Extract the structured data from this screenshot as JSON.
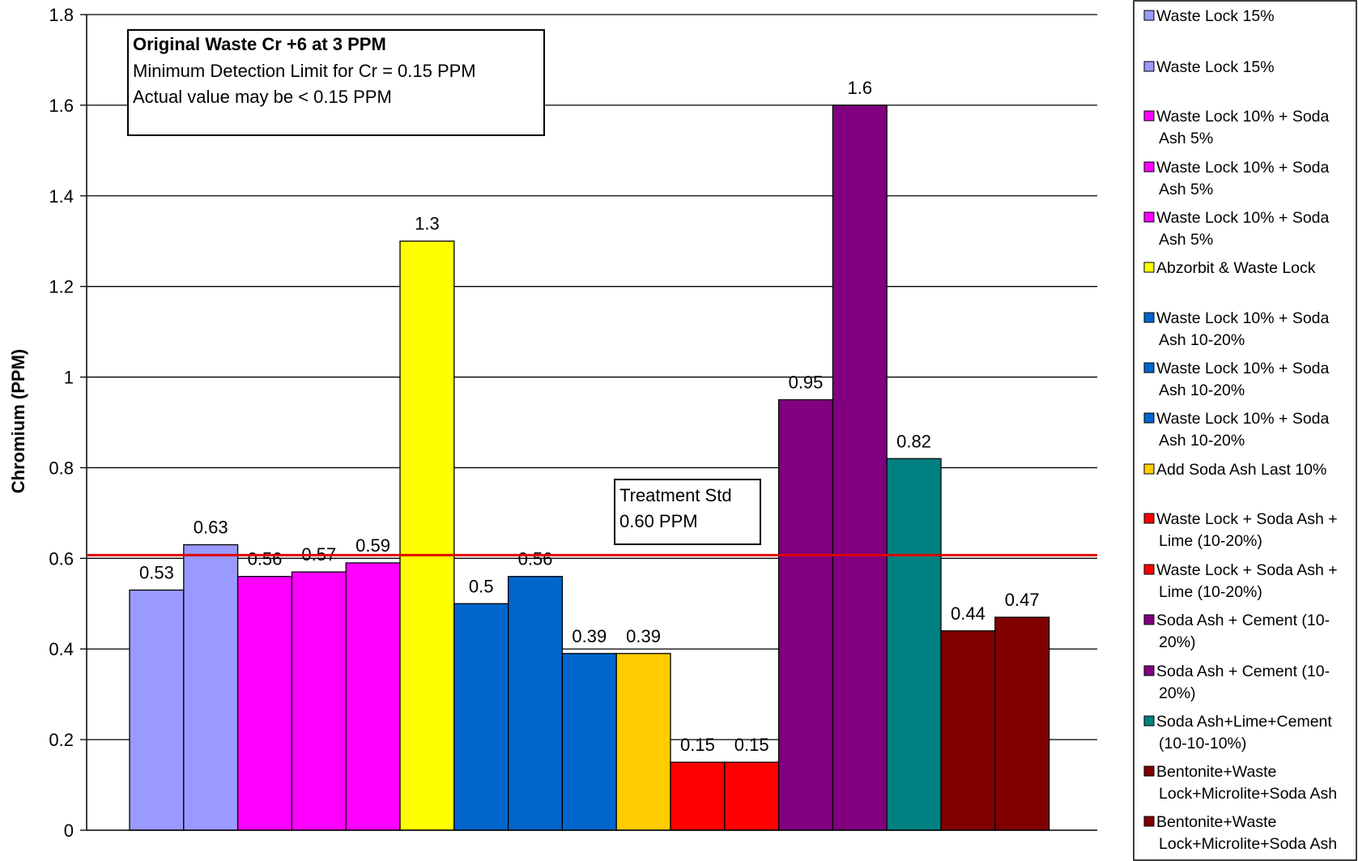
{
  "chart_data": {
    "type": "bar",
    "title": "",
    "xlabel": "",
    "ylabel": "Chromium (PPM)",
    "ylim": [
      0,
      1.8
    ],
    "yticks": [
      "0",
      "0.2",
      "0.4",
      "0.6",
      "0.8",
      "1",
      "1.2",
      "1.4",
      "1.6",
      "1.8"
    ],
    "grid": true,
    "legend_position": "right",
    "series": [
      {
        "name": "Waste Lock 15%",
        "value": 0.53,
        "label": "0.53",
        "color": "#9999FF"
      },
      {
        "name": "Waste Lock 15%",
        "value": 0.63,
        "label": "0.63",
        "color": "#9999FF"
      },
      {
        "name": "Waste Lock 10% + Soda Ash 5%",
        "value": 0.56,
        "label": "0.56",
        "color": "#FF00FF"
      },
      {
        "name": "Waste Lock 10% + Soda Ash 5%",
        "value": 0.57,
        "label": "0.57",
        "color": "#FF00FF"
      },
      {
        "name": "Waste Lock 10% + Soda Ash 5%",
        "value": 0.59,
        "label": "0.59",
        "color": "#FF00FF"
      },
      {
        "name": "Abzorbit & Waste Lock",
        "value": 1.3,
        "label": "1.3",
        "color": "#FFFF00"
      },
      {
        "name": "Waste Lock 10% + Soda Ash 10-20%",
        "value": 0.5,
        "label": "0.5",
        "color": "#0066CC"
      },
      {
        "name": "Waste Lock 10% + Soda Ash 10-20%",
        "value": 0.56,
        "label": "0.56",
        "color": "#0066CC"
      },
      {
        "name": "Waste Lock 10% + Soda Ash 10-20%",
        "value": 0.39,
        "label": "0.39",
        "color": "#0066CC"
      },
      {
        "name": "Add Soda Ash Last 10%",
        "value": 0.39,
        "label": "0.39",
        "color": "#FFCC00"
      },
      {
        "name": "Waste Lock + Soda Ash + Lime (10-20%)",
        "value": 0.15,
        "label": "0.15",
        "color": "#FF0000"
      },
      {
        "name": "Waste Lock + Soda Ash + Lime (10-20%)",
        "value": 0.15,
        "label": "0.15",
        "color": "#FF0000"
      },
      {
        "name": "Soda Ash + Cement (10-20%)",
        "value": 0.95,
        "label": "0.95",
        "color": "#800080"
      },
      {
        "name": "Soda Ash + Cement (10-20%)",
        "value": 1.6,
        "label": "1.6",
        "color": "#800080"
      },
      {
        "name": "Soda Ash+Lime+Cement (10-10-10%)",
        "value": 0.82,
        "label": "0.82",
        "color": "#008080"
      },
      {
        "name": "Bentonite+Waste Lock+Microlite+Soda Ash",
        "value": 0.44,
        "label": "0.44",
        "color": "#800000"
      },
      {
        "name": "Bentonite+Waste Lock+Microlite+Soda Ash",
        "value": 0.47,
        "label": "0.47",
        "color": "#800000"
      }
    ],
    "legend_lines": [
      [
        "Waste Lock 15%"
      ],
      [
        "Waste Lock 15%"
      ],
      [
        "Waste Lock 10% + Soda",
        "Ash 5%"
      ],
      [
        "Waste Lock 10% + Soda",
        "Ash 5%"
      ],
      [
        "Waste Lock 10% + Soda",
        "Ash 5%"
      ],
      [
        "Abzorbit & Waste Lock"
      ],
      [
        "Waste Lock 10% + Soda",
        "Ash 10-20%"
      ],
      [
        "Waste Lock 10% + Soda",
        "Ash 10-20%"
      ],
      [
        "Waste Lock 10% + Soda",
        "Ash 10-20%"
      ],
      [
        "Add Soda Ash Last 10%"
      ],
      [
        "Waste Lock + Soda Ash +",
        "Lime (10-20%)"
      ],
      [
        "Waste Lock + Soda Ash +",
        "Lime (10-20%)"
      ],
      [
        "Soda Ash + Cement (10-",
        "20%)"
      ],
      [
        "Soda Ash + Cement (10-",
        "20%)"
      ],
      [
        "Soda Ash+Lime+Cement",
        "(10-10-10%)"
      ],
      [
        "Bentonite+Waste",
        "Lock+Microlite+Soda Ash"
      ],
      [
        "Bentonite+Waste",
        "Lock+Microlite+Soda Ash"
      ]
    ],
    "reference_line": {
      "value": 0.6,
      "color": "#E00000"
    },
    "annotations": {
      "info_title": "Original Waste Cr +6 at 3 PPM",
      "info_line1": "Minimum Detection Limit for Cr = 0.15 PPM",
      "info_line2": "Actual value may be < 0.15 PPM",
      "std_line1": "Treatment Std",
      "std_line2": "0.60 PPM"
    }
  }
}
